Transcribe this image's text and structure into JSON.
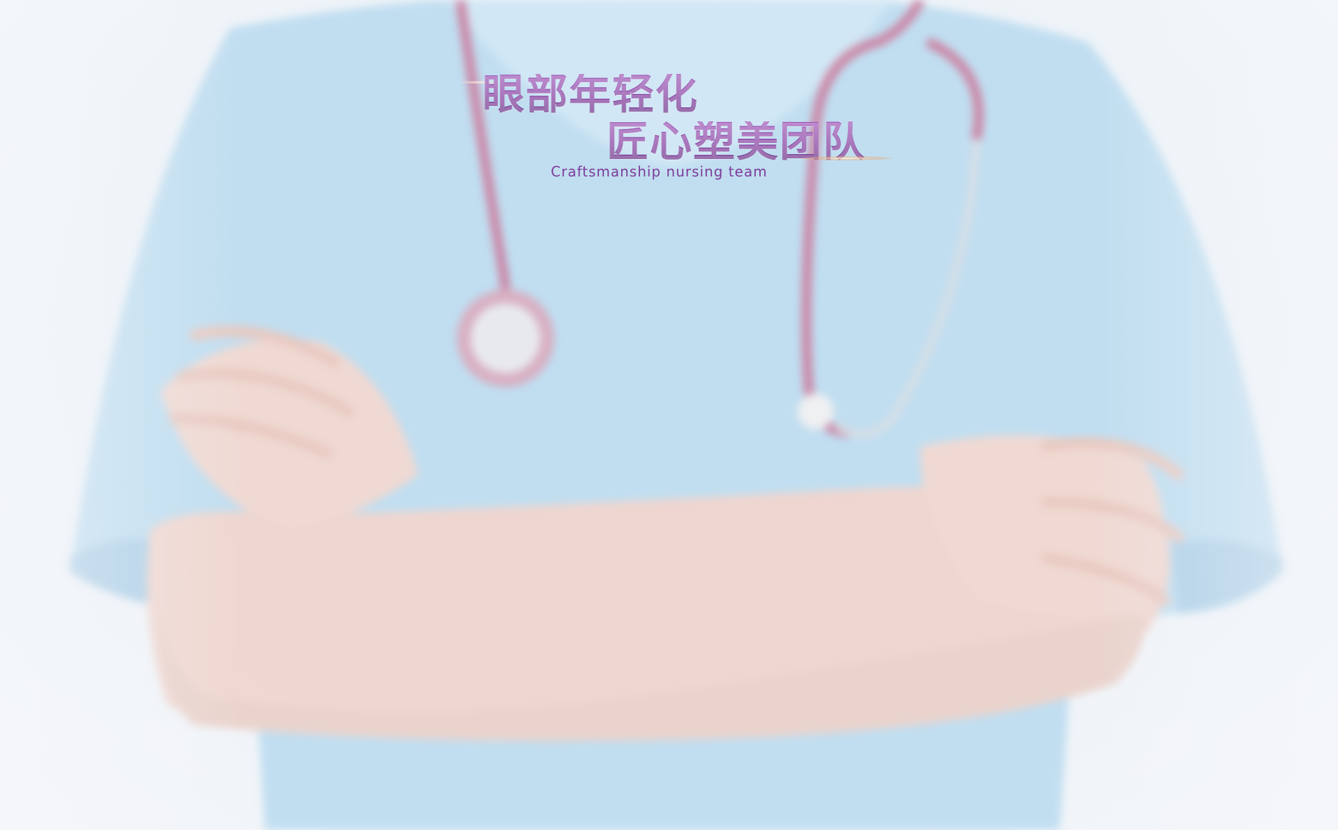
{
  "banner": {
    "headline_line1": "眼部年轻化",
    "headline_line2": "匠心塑美团队",
    "subtitle": "Craftsmanship nursing team"
  },
  "background": {
    "subject": "nurse-with-stethoscope-photo",
    "uniform_color": "#bcdcf0",
    "stethoscope_color": "#c87a9c",
    "skin_color": "#f0d4cc",
    "accent_color": "#7a2d97"
  }
}
